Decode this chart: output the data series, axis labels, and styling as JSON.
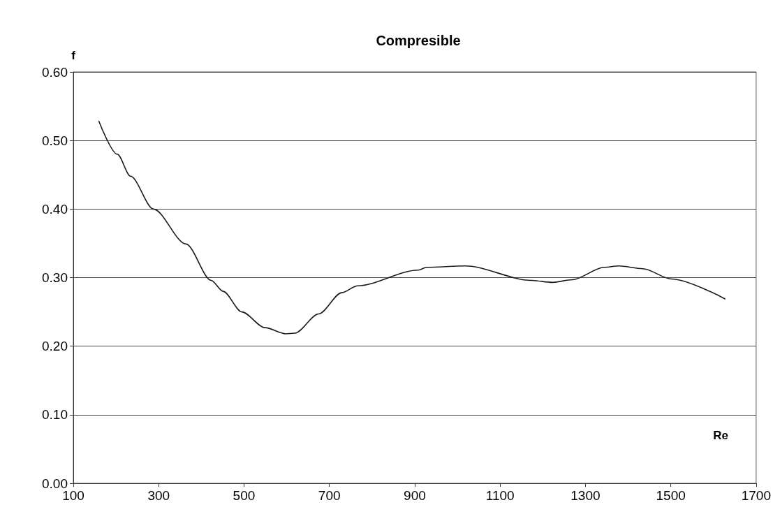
{
  "chart_data": {
    "type": "line",
    "title": "Compresible",
    "xlabel": "Re",
    "ylabel": "f",
    "x": [
      160,
      203,
      234,
      288,
      364,
      423,
      451,
      495,
      549,
      598,
      619,
      675,
      729,
      766,
      908,
      928,
      1019,
      1173,
      1223,
      1269,
      1344,
      1378,
      1434,
      1502,
      1627
    ],
    "series": [
      {
        "color": "#1a1a1a",
        "values": [
          0.528,
          0.48,
          0.448,
          0.4,
          0.349,
          0.296,
          0.28,
          0.25,
          0.227,
          0.218,
          0.219,
          0.247,
          0.278,
          0.288,
          0.311,
          0.315,
          0.317,
          0.296,
          0.293,
          0.297,
          0.315,
          0.317,
          0.313,
          0.298,
          0.269
        ]
      }
    ],
    "xlim": [
      100,
      1700
    ],
    "xticks": [
      100,
      300,
      500,
      700,
      900,
      1100,
      1300,
      1500,
      1700
    ],
    "ylim": [
      0,
      0.6
    ],
    "yticks": [
      {
        "value": 0,
        "label": "0.00"
      },
      {
        "value": 0.1,
        "label": "0.10"
      },
      {
        "value": 0.2,
        "label": "0.20"
      },
      {
        "value": 0.3,
        "label": "0.30"
      },
      {
        "value": 0.4,
        "label": "0.40"
      },
      {
        "value": 0.5,
        "label": "0.50"
      },
      {
        "value": 0.6,
        "label": "0.60"
      }
    ],
    "grid": "y",
    "marker": "none",
    "line_style": "solid"
  }
}
